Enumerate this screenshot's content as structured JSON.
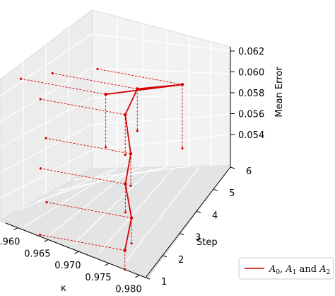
{
  "chart_data": {
    "type": "line3d",
    "title": "",
    "xlabel": "κ",
    "ylabel": "Step",
    "zlabel": "Mean Error",
    "x_ticks": [
      "0.960",
      "0.965",
      "0.970",
      "0.975",
      "0.980"
    ],
    "y_ticks": [
      "1",
      "2",
      "3",
      "4",
      "5",
      "6"
    ],
    "z_ticks": [
      "0.054",
      "0.056",
      "0.058",
      "0.060",
      "0.062"
    ],
    "xlim": [
      0.958,
      0.981
    ],
    "ylim": [
      1,
      6
    ],
    "zlim": [
      0.0525,
      0.062
    ],
    "grid": true,
    "projection_lines": "dashed",
    "legend_position": "lower-right",
    "series": [
      {
        "name": "A0, A1 and A2",
        "color": "#d40000",
        "points": [
          {
            "kappa": 0.9776,
            "step": 1,
            "error": 0.0546
          },
          {
            "kappa": 0.9759,
            "step": 2,
            "error": 0.0553
          },
          {
            "kappa": 0.9721,
            "step": 3,
            "error": 0.0556
          },
          {
            "kappa": 0.9702,
            "step": 4,
            "error": 0.056
          },
          {
            "kappa": 0.9665,
            "step": 5,
            "error": 0.0569
          },
          {
            "kappa": 0.9657,
            "step": 6,
            "error": 0.0571
          },
          {
            "kappa": 0.9731,
            "step": 6,
            "error": 0.0595
          },
          {
            "kappa": 0.9633,
            "step": 5,
            "error": 0.0583
          }
        ]
      }
    ]
  },
  "legend": {
    "label_main": "A",
    "sub0": "0",
    "sub1": "1",
    "and_text": " and ",
    "sub2": "2",
    "separator": ", "
  }
}
